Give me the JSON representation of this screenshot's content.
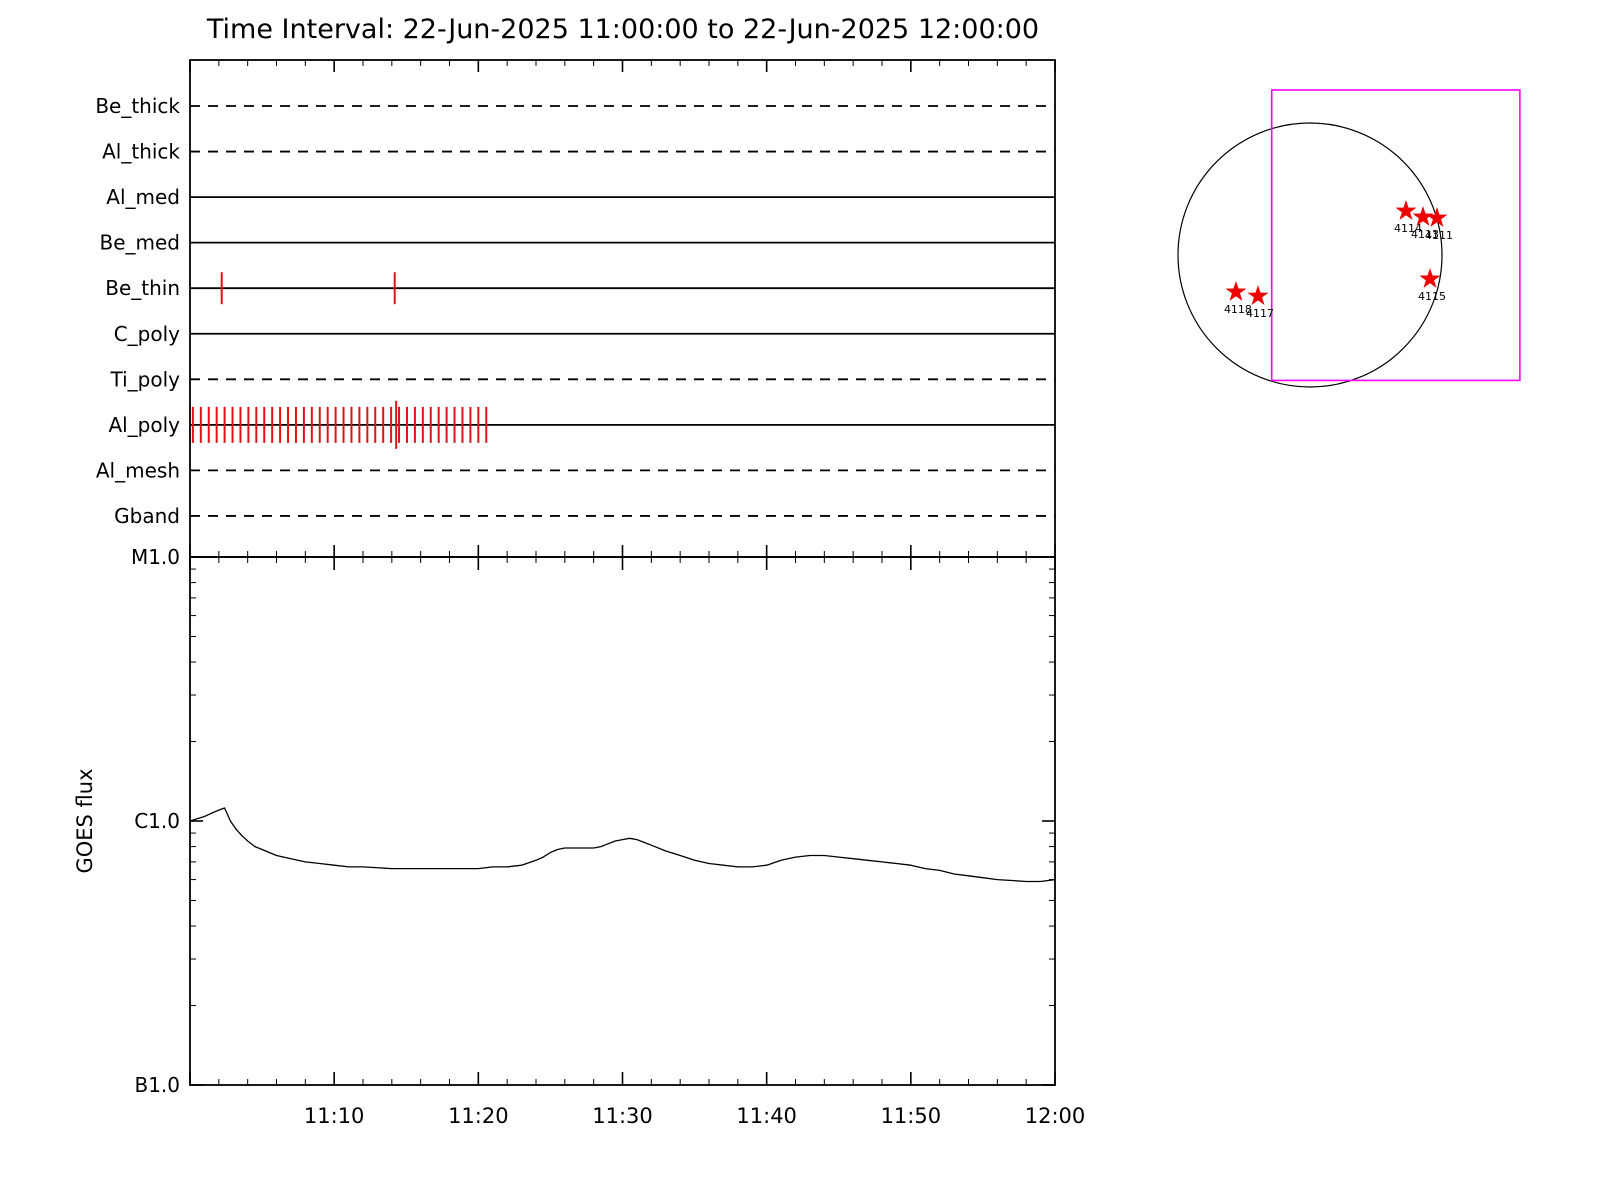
{
  "figure": {
    "title": "Time Interval: 22-Jun-2025 11:00:00 to 22-Jun-2025 12:00:00"
  },
  "chart_data": {
    "type": "line",
    "title": "Time Interval: 22-Jun-2025 11:00:00 to 22-Jun-2025 12:00:00",
    "x_axis": {
      "start": "11:00",
      "end": "12:00",
      "minutes_span": 60,
      "tick_labels": [
        {
          "label": "11:10",
          "minute": 10
        },
        {
          "label": "11:20",
          "minute": 20
        },
        {
          "label": "11:30",
          "minute": 30
        },
        {
          "label": "11:40",
          "minute": 40
        },
        {
          "label": "11:50",
          "minute": 50
        },
        {
          "label": "12:00",
          "minute": 60
        }
      ]
    },
    "timeline_panel": {
      "description": "XRT filter exposure timeline",
      "mark_color": "#e01212",
      "rows": [
        {
          "label": "Be_thick",
          "line": "dashed",
          "marks_min": [],
          "long_marks_min": []
        },
        {
          "label": "Al_thick",
          "line": "dashed",
          "marks_min": [],
          "long_marks_min": []
        },
        {
          "label": "Al_med",
          "line": "solid",
          "marks_min": [],
          "long_marks_min": []
        },
        {
          "label": "Be_med",
          "line": "solid",
          "marks_min": [],
          "long_marks_min": []
        },
        {
          "label": "Be_thin",
          "line": "solid",
          "marks_min": [
            2.2,
            14.2
          ],
          "long_marks_min": []
        },
        {
          "label": "C_poly",
          "line": "solid",
          "marks_min": [],
          "long_marks_min": []
        },
        {
          "label": "Ti_poly",
          "line": "dashed",
          "marks_min": [],
          "long_marks_min": []
        },
        {
          "label": "Al_poly",
          "line": "solid",
          "marks_min": [
            0.2,
            0.75,
            1.3,
            1.85,
            2.4,
            2.95,
            3.5,
            4.05,
            4.6,
            5.15,
            5.7,
            6.25,
            6.8,
            7.35,
            7.9,
            8.45,
            9.0,
            9.55,
            10.1,
            10.65,
            11.2,
            11.75,
            12.3,
            12.85,
            13.4,
            13.95,
            14.5,
            15.05,
            15.6,
            16.15,
            16.7,
            17.25,
            17.8,
            18.35,
            18.9,
            19.45,
            20.0,
            20.55
          ],
          "long_marks_min": [
            14.3
          ]
        },
        {
          "label": "Al_mesh",
          "line": "dashed",
          "marks_min": [],
          "long_marks_min": []
        },
        {
          "label": "Gband",
          "line": "dashed",
          "marks_min": [],
          "long_marks_min": []
        }
      ]
    },
    "goes_panel": {
      "ylabel": "GOES flux",
      "y_range_log10_wm2": [
        -7,
        -5
      ],
      "y_tick_labels": [
        {
          "label": "M1.0",
          "log10_flux": -5
        },
        {
          "label": "C1.0",
          "log10_flux": -6
        },
        {
          "label": "B1.0",
          "log10_flux": -7
        }
      ],
      "series_unit": "C-class units (1e-6 W/m2)",
      "points_min_vs_c": [
        [
          0,
          1.0
        ],
        [
          0.5,
          1.02
        ],
        [
          1,
          1.04
        ],
        [
          1.5,
          1.07
        ],
        [
          2,
          1.1
        ],
        [
          2.4,
          1.12
        ],
        [
          2.8,
          1.0
        ],
        [
          3.2,
          0.93
        ],
        [
          3.6,
          0.88
        ],
        [
          4,
          0.84
        ],
        [
          4.5,
          0.8
        ],
        [
          5,
          0.78
        ],
        [
          6,
          0.74
        ],
        [
          7,
          0.72
        ],
        [
          8,
          0.7
        ],
        [
          9,
          0.69
        ],
        [
          10,
          0.68
        ],
        [
          11,
          0.67
        ],
        [
          12,
          0.67
        ],
        [
          14,
          0.66
        ],
        [
          16,
          0.66
        ],
        [
          18,
          0.66
        ],
        [
          20,
          0.66
        ],
        [
          21,
          0.67
        ],
        [
          22,
          0.67
        ],
        [
          23,
          0.68
        ],
        [
          24,
          0.71
        ],
        [
          24.5,
          0.73
        ],
        [
          25,
          0.76
        ],
        [
          25.5,
          0.78
        ],
        [
          26,
          0.79
        ],
        [
          27,
          0.79
        ],
        [
          28,
          0.79
        ],
        [
          28.5,
          0.8
        ],
        [
          29,
          0.82
        ],
        [
          29.5,
          0.84
        ],
        [
          30,
          0.85
        ],
        [
          30.5,
          0.86
        ],
        [
          31,
          0.85
        ],
        [
          31.5,
          0.83
        ],
        [
          32,
          0.81
        ],
        [
          33,
          0.77
        ],
        [
          34,
          0.74
        ],
        [
          35,
          0.71
        ],
        [
          36,
          0.69
        ],
        [
          37,
          0.68
        ],
        [
          38,
          0.67
        ],
        [
          39,
          0.67
        ],
        [
          40,
          0.68
        ],
        [
          41,
          0.71
        ],
        [
          42,
          0.73
        ],
        [
          43,
          0.74
        ],
        [
          44,
          0.74
        ],
        [
          45,
          0.73
        ],
        [
          46,
          0.72
        ],
        [
          47,
          0.71
        ],
        [
          48,
          0.7
        ],
        [
          49,
          0.69
        ],
        [
          50,
          0.68
        ],
        [
          51,
          0.66
        ],
        [
          52,
          0.65
        ],
        [
          53,
          0.63
        ],
        [
          54,
          0.62
        ],
        [
          55,
          0.61
        ],
        [
          56,
          0.6
        ],
        [
          57,
          0.595
        ],
        [
          58,
          0.59
        ],
        [
          59,
          0.59
        ],
        [
          60,
          0.6
        ]
      ]
    },
    "sun_map": {
      "disk_outline_color": "#000000",
      "fov_color": "#ff00ff",
      "star_color": "#ee0000",
      "fov_r_units": {
        "x1": -0.29,
        "y1": -1.25,
        "x2": 1.59,
        "y2": 0.95
      },
      "active_regions": [
        {
          "noaa": "4114",
          "dx": 0.727,
          "dy": -0.333
        },
        {
          "noaa": "4113",
          "dx": 0.856,
          "dy": -0.288
        },
        {
          "noaa": "4111",
          "dx": 0.962,
          "dy": -0.28
        },
        {
          "noaa": "4118",
          "dx": -0.561,
          "dy": 0.28
        },
        {
          "noaa": "4117",
          "dx": -0.394,
          "dy": 0.311
        },
        {
          "noaa": "4115",
          "dx": 0.909,
          "dy": 0.182
        }
      ]
    }
  }
}
